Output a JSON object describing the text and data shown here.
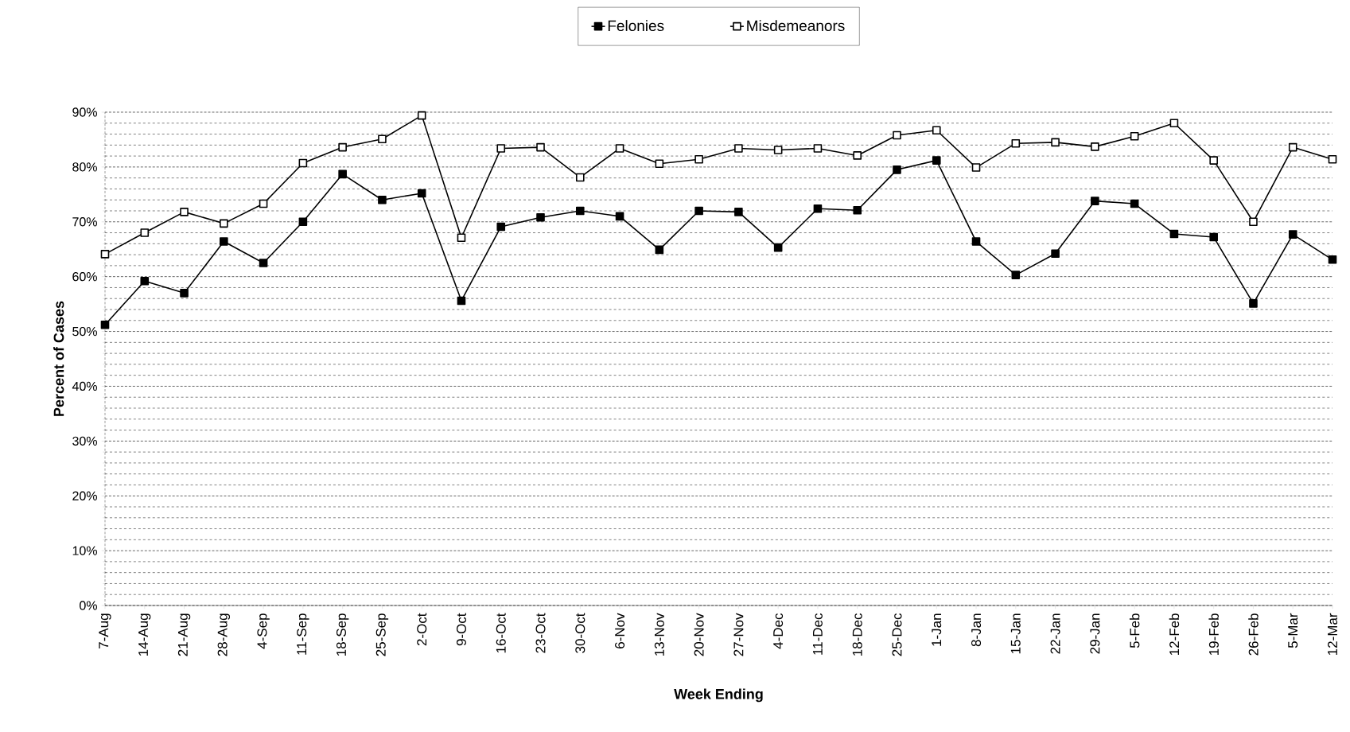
{
  "chart_data": {
    "type": "line",
    "xlabel": "Week Ending",
    "ylabel": "Percent of Cases",
    "categories": [
      "7-Aug",
      "14-Aug",
      "21-Aug",
      "28-Aug",
      "4-Sep",
      "11-Sep",
      "18-Sep",
      "25-Sep",
      "2-Oct",
      "9-Oct",
      "16-Oct",
      "23-Oct",
      "30-Oct",
      "6-Nov",
      "13-Nov",
      "20-Nov",
      "27-Nov",
      "4-Dec",
      "11-Dec",
      "18-Dec",
      "25-Dec",
      "1-Jan",
      "8-Jan",
      "15-Jan",
      "22-Jan",
      "29-Jan",
      "5-Feb",
      "12-Feb",
      "19-Feb",
      "26-Feb",
      "5-Mar",
      "12-Mar"
    ],
    "series": [
      {
        "name": "Felonies",
        "color": "#000000",
        "values": [
          51.2,
          59.2,
          57,
          66.4,
          62.5,
          70,
          78.7,
          74,
          75.2,
          55.6,
          69.1,
          70.8,
          72,
          71,
          64.9,
          72,
          71.8,
          65.3,
          72.4,
          72.1,
          79.5,
          81.2,
          66.4,
          60.3,
          64.2,
          73.8,
          73.3,
          67.8,
          67.2,
          55.1,
          67.7,
          63.1
        ]
      },
      {
        "name": "Misdemeanors",
        "color": "#000000",
        "values": [
          64.1,
          68,
          71.8,
          69.7,
          73.3,
          80.7,
          83.6,
          85.1,
          89.4,
          67.1,
          83.4,
          83.6,
          78.1,
          83.4,
          80.6,
          81.4,
          83.4,
          83.1,
          83.4,
          82.1,
          85.8,
          86.7,
          79.9,
          84.3,
          84.5,
          83.7,
          85.6,
          88,
          81.2,
          70,
          83.6,
          81.4
        ]
      }
    ],
    "ylim": [
      0,
      90
    ],
    "yticks": [
      {
        "value": 0,
        "label": "0%"
      },
      {
        "value": 10,
        "label": "10%"
      },
      {
        "value": 20,
        "label": "20%"
      },
      {
        "value": 30,
        "label": "30%"
      },
      {
        "value": 40,
        "label": "40%"
      },
      {
        "value": 50,
        "label": "50%"
      },
      {
        "value": 60,
        "label": "60%"
      },
      {
        "value": 70,
        "label": "70%"
      },
      {
        "value": 80,
        "label": "80%"
      },
      {
        "value": 90,
        "label": "90%"
      }
    ],
    "grid": "y",
    "legend": "top",
    "marker": "square",
    "line_style": "solid"
  }
}
